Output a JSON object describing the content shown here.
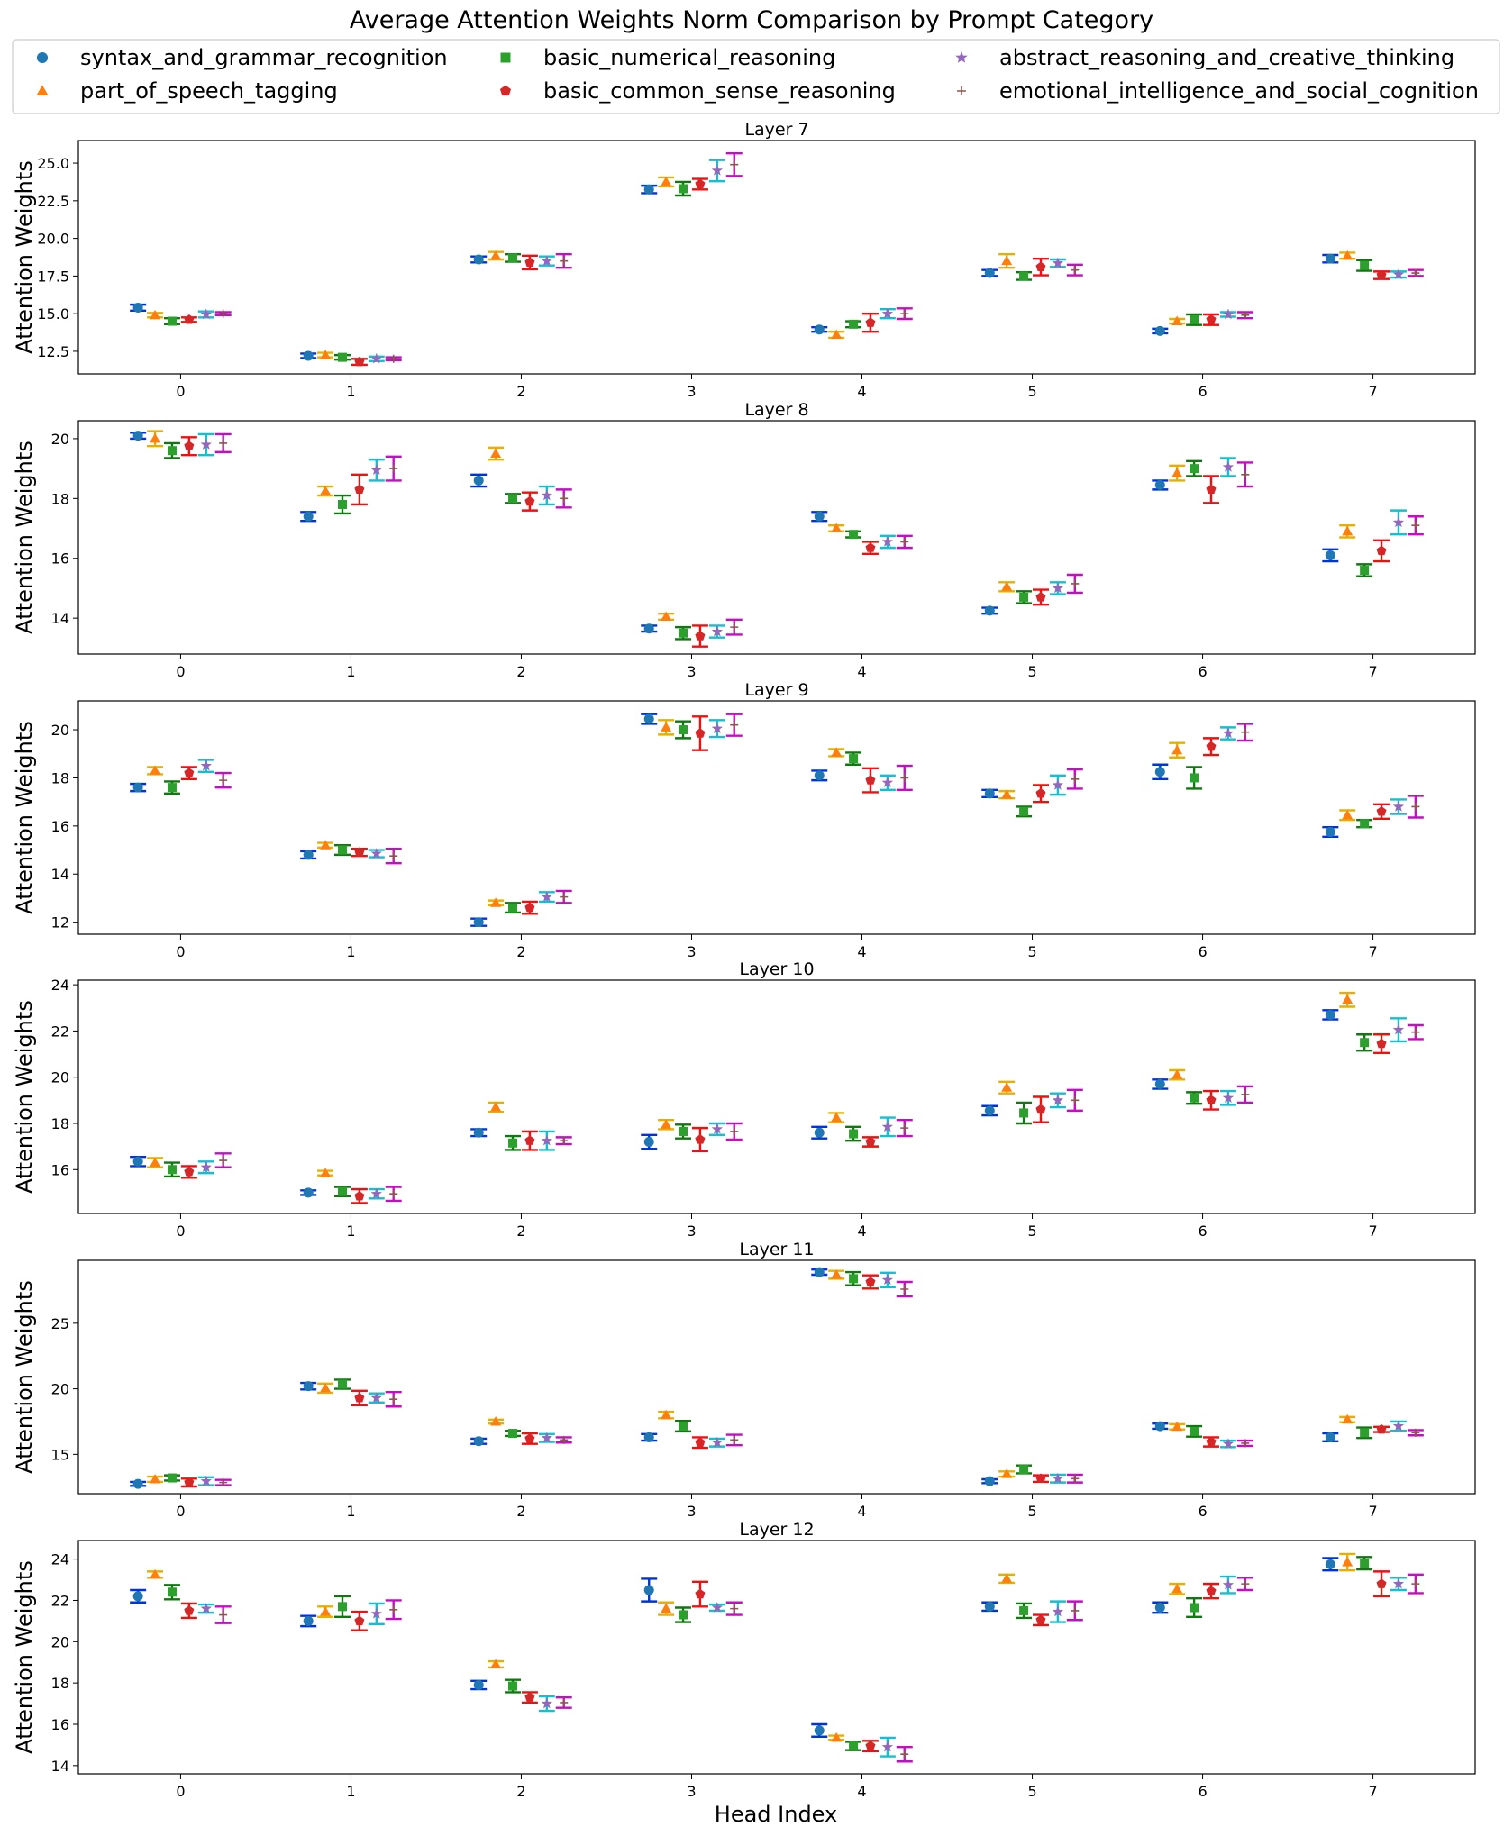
{
  "chart_data": {
    "type": "scatter",
    "title": "Average Attention Weights Norm Comparison by Prompt Category",
    "xlabel": "Head Index",
    "ylabel": "Attention Weights",
    "legend_placement": "top",
    "x_ticks": [
      "0",
      "1",
      "2",
      "3",
      "4",
      "5",
      "6",
      "7"
    ],
    "series": [
      {
        "name": "syntax_and_grammar_recognition",
        "color": "#1f77b4",
        "err_color": "#0033dd",
        "marker": "circle"
      },
      {
        "name": "part_of_speech_tagging",
        "color": "#ff7f0e",
        "err_color": "#e6b000",
        "marker": "triangle"
      },
      {
        "name": "basic_numerical_reasoning",
        "color": "#2ca02c",
        "err_color": "#117711",
        "marker": "square"
      },
      {
        "name": "basic_common_sense_reasoning",
        "color": "#d62728",
        "err_color": "#ee1111",
        "marker": "pentagon"
      },
      {
        "name": "abstract_reasoning_and_creative_thinking",
        "color": "#9467bd",
        "err_color": "#17becf",
        "marker": "star"
      },
      {
        "name": "emotional_intelligence_and_social_cognition",
        "color": "#8c564b",
        "err_color": "#c40ec4",
        "marker": "plus"
      }
    ],
    "panels": [
      {
        "title": "Layer 7",
        "ylim": [
          11,
          26.5
        ],
        "yticks": [
          "12.5",
          "15.0",
          "17.5",
          "20.0",
          "22.5",
          "25.0"
        ],
        "values": [
          [
            15.4,
            14.9,
            14.5,
            14.6,
            14.95,
            15.0
          ],
          [
            12.2,
            12.25,
            12.1,
            11.8,
            12.0,
            12.0
          ],
          [
            18.6,
            18.85,
            18.7,
            18.4,
            18.5,
            18.5
          ],
          [
            23.25,
            23.75,
            23.3,
            23.6,
            24.5,
            24.9
          ],
          [
            13.95,
            13.6,
            14.3,
            14.4,
            15.0,
            15.0
          ],
          [
            17.7,
            18.5,
            17.5,
            18.1,
            18.35,
            17.9
          ],
          [
            13.85,
            14.5,
            14.6,
            14.6,
            14.95,
            14.9
          ],
          [
            18.65,
            18.85,
            18.2,
            17.55,
            17.6,
            17.7
          ]
        ],
        "errors": [
          [
            0.2,
            0.15,
            0.2,
            0.15,
            0.2,
            0.1
          ],
          [
            0.15,
            0.15,
            0.15,
            0.2,
            0.15,
            0.1
          ],
          [
            0.2,
            0.25,
            0.25,
            0.45,
            0.3,
            0.45
          ],
          [
            0.25,
            0.3,
            0.45,
            0.35,
            0.7,
            0.75
          ],
          [
            0.15,
            0.2,
            0.2,
            0.6,
            0.3,
            0.35
          ],
          [
            0.2,
            0.45,
            0.25,
            0.55,
            0.25,
            0.35
          ],
          [
            0.15,
            0.15,
            0.35,
            0.35,
            0.15,
            0.2
          ],
          [
            0.25,
            0.2,
            0.35,
            0.25,
            0.2,
            0.2
          ]
        ]
      },
      {
        "title": "Layer 8",
        "ylim": [
          12.8,
          20.6
        ],
        "yticks": [
          "14",
          "16",
          "18",
          "20"
        ],
        "values": [
          [
            20.1,
            20.0,
            19.6,
            19.75,
            19.8,
            19.85
          ],
          [
            17.4,
            18.25,
            17.8,
            18.3,
            18.95,
            19.0
          ],
          [
            18.6,
            19.5,
            18.0,
            17.9,
            18.1,
            18.0
          ],
          [
            13.65,
            14.05,
            13.5,
            13.4,
            13.55,
            13.7
          ],
          [
            17.4,
            17.0,
            16.8,
            16.35,
            16.55,
            16.55
          ],
          [
            14.25,
            15.05,
            14.7,
            14.7,
            15.0,
            15.15
          ],
          [
            18.45,
            18.85,
            19.0,
            18.3,
            19.05,
            18.8
          ],
          [
            16.1,
            16.9,
            15.6,
            16.25,
            17.2,
            17.1
          ]
        ],
        "errors": [
          [
            0.1,
            0.25,
            0.25,
            0.3,
            0.35,
            0.3
          ],
          [
            0.15,
            0.15,
            0.3,
            0.5,
            0.35,
            0.4
          ],
          [
            0.2,
            0.2,
            0.15,
            0.3,
            0.3,
            0.3
          ],
          [
            0.1,
            0.1,
            0.2,
            0.35,
            0.2,
            0.25
          ],
          [
            0.15,
            0.1,
            0.1,
            0.2,
            0.2,
            0.2
          ],
          [
            0.1,
            0.15,
            0.2,
            0.25,
            0.2,
            0.3
          ],
          [
            0.15,
            0.25,
            0.25,
            0.45,
            0.3,
            0.4
          ],
          [
            0.2,
            0.2,
            0.2,
            0.35,
            0.4,
            0.3
          ]
        ]
      },
      {
        "title": "Layer 9",
        "ylim": [
          11.5,
          21.2
        ],
        "yticks": [
          "12",
          "14",
          "16",
          "18",
          "20"
        ],
        "values": [
          [
            17.6,
            18.3,
            17.6,
            18.2,
            18.5,
            17.9
          ],
          [
            14.8,
            15.2,
            15.0,
            14.9,
            14.85,
            14.75
          ],
          [
            12.0,
            12.8,
            12.6,
            12.6,
            13.05,
            13.05
          ],
          [
            20.45,
            20.1,
            20.0,
            19.85,
            20.05,
            20.2
          ],
          [
            18.1,
            19.05,
            18.8,
            17.9,
            17.8,
            18.0
          ],
          [
            17.35,
            17.3,
            16.6,
            17.35,
            17.7,
            17.95
          ],
          [
            18.25,
            19.15,
            18.0,
            19.3,
            19.85,
            19.9
          ],
          [
            15.75,
            16.45,
            16.1,
            16.6,
            16.8,
            16.8
          ]
        ],
        "errors": [
          [
            0.15,
            0.15,
            0.25,
            0.25,
            0.25,
            0.3
          ],
          [
            0.15,
            0.1,
            0.2,
            0.15,
            0.15,
            0.3
          ],
          [
            0.15,
            0.1,
            0.2,
            0.25,
            0.2,
            0.25
          ],
          [
            0.2,
            0.3,
            0.35,
            0.7,
            0.35,
            0.45
          ],
          [
            0.2,
            0.15,
            0.25,
            0.5,
            0.3,
            0.5
          ],
          [
            0.15,
            0.15,
            0.2,
            0.35,
            0.4,
            0.4
          ],
          [
            0.3,
            0.3,
            0.45,
            0.35,
            0.25,
            0.35
          ],
          [
            0.2,
            0.2,
            0.15,
            0.3,
            0.3,
            0.45
          ]
        ]
      },
      {
        "title": "Layer 10",
        "ylim": [
          14.1,
          24.2
        ],
        "yticks": [
          "16",
          "18",
          "20",
          "22",
          "24"
        ],
        "values": [
          [
            16.35,
            16.3,
            16.0,
            15.9,
            16.1,
            16.4
          ],
          [
            15.0,
            15.85,
            15.05,
            14.85,
            14.95,
            14.95
          ],
          [
            17.6,
            18.7,
            17.15,
            17.25,
            17.25,
            17.25
          ],
          [
            17.2,
            17.95,
            17.65,
            17.3,
            17.75,
            17.65
          ],
          [
            17.6,
            18.25,
            17.55,
            17.2,
            17.85,
            17.8
          ],
          [
            18.55,
            19.55,
            18.45,
            18.6,
            19.0,
            19.0
          ],
          [
            19.7,
            20.1,
            19.1,
            19.0,
            19.1,
            19.25
          ],
          [
            22.7,
            23.35,
            21.5,
            21.45,
            22.05,
            21.95
          ]
        ],
        "errors": [
          [
            0.2,
            0.2,
            0.3,
            0.25,
            0.25,
            0.3
          ],
          [
            0.1,
            0.1,
            0.2,
            0.3,
            0.2,
            0.3
          ],
          [
            0.15,
            0.2,
            0.3,
            0.4,
            0.4,
            0.15
          ],
          [
            0.3,
            0.2,
            0.3,
            0.5,
            0.25,
            0.35
          ],
          [
            0.25,
            0.2,
            0.3,
            0.2,
            0.4,
            0.35
          ],
          [
            0.2,
            0.25,
            0.45,
            0.55,
            0.3,
            0.45
          ],
          [
            0.2,
            0.2,
            0.25,
            0.4,
            0.3,
            0.35
          ],
          [
            0.2,
            0.3,
            0.35,
            0.4,
            0.5,
            0.3
          ]
        ]
      },
      {
        "title": "Layer 11",
        "ylim": [
          12.0,
          29.8
        ],
        "yticks": [
          "15",
          "20",
          "25"
        ],
        "values": [
          [
            12.75,
            13.1,
            13.2,
            12.85,
            12.95,
            12.85
          ],
          [
            20.2,
            20.05,
            20.35,
            19.3,
            19.3,
            19.2
          ],
          [
            16.0,
            17.5,
            16.6,
            16.2,
            16.25,
            16.1
          ],
          [
            16.3,
            18.0,
            17.15,
            15.9,
            15.9,
            16.1
          ],
          [
            28.9,
            28.7,
            28.4,
            28.15,
            28.3,
            27.6
          ],
          [
            12.95,
            13.5,
            13.85,
            13.15,
            13.15,
            13.15
          ],
          [
            17.15,
            17.1,
            16.75,
            15.95,
            15.8,
            15.85
          ],
          [
            16.3,
            17.65,
            16.65,
            16.9,
            17.15,
            16.65
          ]
        ],
        "errors": [
          [
            0.15,
            0.2,
            0.2,
            0.3,
            0.3,
            0.2
          ],
          [
            0.25,
            0.35,
            0.35,
            0.55,
            0.35,
            0.55
          ],
          [
            0.2,
            0.15,
            0.2,
            0.4,
            0.3,
            0.2
          ],
          [
            0.25,
            0.25,
            0.4,
            0.4,
            0.3,
            0.4
          ],
          [
            0.2,
            0.3,
            0.5,
            0.5,
            0.55,
            0.55
          ],
          [
            0.15,
            0.2,
            0.3,
            0.25,
            0.3,
            0.3
          ],
          [
            0.2,
            0.2,
            0.4,
            0.35,
            0.25,
            0.2
          ],
          [
            0.3,
            0.2,
            0.4,
            0.2,
            0.35,
            0.2
          ]
        ]
      },
      {
        "title": "Layer 12",
        "ylim": [
          13.6,
          24.9
        ],
        "yticks": [
          "14",
          "16",
          "18",
          "20",
          "22",
          "24"
        ],
        "values": [
          [
            22.2,
            23.25,
            22.4,
            21.5,
            21.6,
            21.3
          ],
          [
            21.0,
            21.45,
            21.7,
            21.0,
            21.35,
            21.55
          ],
          [
            17.9,
            18.9,
            17.85,
            17.3,
            17.0,
            17.05
          ],
          [
            22.5,
            21.6,
            21.3,
            22.3,
            21.65,
            21.6
          ],
          [
            15.7,
            15.35,
            14.95,
            14.95,
            14.9,
            14.55
          ],
          [
            21.7,
            23.05,
            21.5,
            21.05,
            21.45,
            21.5
          ],
          [
            21.65,
            22.55,
            21.65,
            22.45,
            22.75,
            22.8
          ],
          [
            23.75,
            23.85,
            23.8,
            22.8,
            22.8,
            22.8
          ]
        ],
        "errors": [
          [
            0.3,
            0.15,
            0.35,
            0.35,
            0.2,
            0.4
          ],
          [
            0.25,
            0.25,
            0.5,
            0.45,
            0.5,
            0.45
          ],
          [
            0.2,
            0.15,
            0.3,
            0.25,
            0.35,
            0.25
          ],
          [
            0.55,
            0.3,
            0.35,
            0.6,
            0.15,
            0.3
          ],
          [
            0.3,
            0.1,
            0.2,
            0.25,
            0.45,
            0.35
          ],
          [
            0.2,
            0.2,
            0.35,
            0.25,
            0.5,
            0.45
          ],
          [
            0.25,
            0.25,
            0.45,
            0.35,
            0.4,
            0.3
          ],
          [
            0.3,
            0.4,
            0.3,
            0.6,
            0.3,
            0.45
          ]
        ]
      }
    ]
  }
}
